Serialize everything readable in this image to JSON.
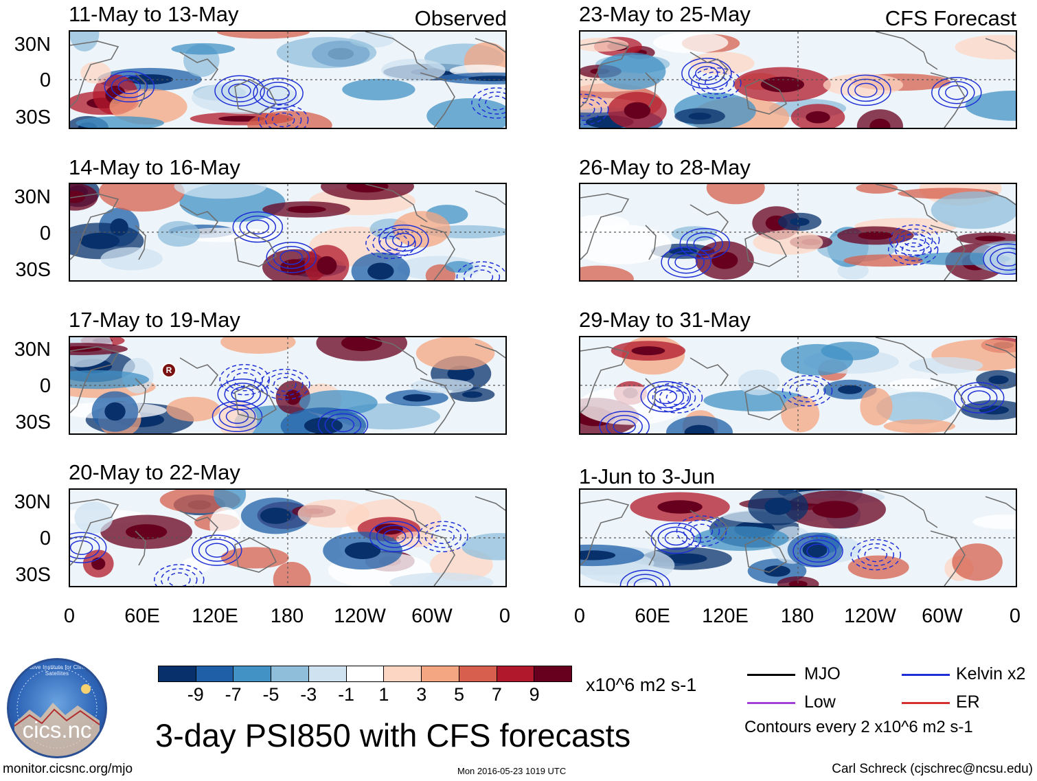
{
  "panels": {
    "left": [
      {
        "date": "11-May to 13-May",
        "tag": "Observed"
      },
      {
        "date": "14-May to 16-May",
        "tag": ""
      },
      {
        "date": "17-May to 19-May",
        "tag": "",
        "marker": "R"
      },
      {
        "date": "20-May to 22-May",
        "tag": ""
      }
    ],
    "right": [
      {
        "date": "23-May to 25-May",
        "tag": "CFS Forecast"
      },
      {
        "date": "26-May to 28-May",
        "tag": ""
      },
      {
        "date": "29-May to 31-May",
        "tag": ""
      },
      {
        "date": "1-Jun to 3-Jun",
        "tag": ""
      }
    ]
  },
  "lat_labels": [
    "30N",
    "0",
    "30S"
  ],
  "lon_labels": [
    "0",
    "60E",
    "120E",
    "180",
    "120W",
    "60W",
    "0"
  ],
  "colorbar": {
    "colors": [
      "#08306b",
      "#1f5fa8",
      "#4292c6",
      "#8fbedb",
      "#cfe2f0",
      "#ffffff",
      "#fdd5c3",
      "#f4a582",
      "#d6604d",
      "#b2182b",
      "#67001f"
    ],
    "ticks": [
      "-9",
      "-7",
      "-5",
      "-3",
      "-1",
      "1",
      "3",
      "5",
      "7",
      "9"
    ],
    "units": "x10^6 m2 s-1"
  },
  "legend": {
    "items": [
      {
        "label": "MJO",
        "color": "#000000"
      },
      {
        "label": "Kelvin x2",
        "color": "#1f2fd6"
      },
      {
        "label": "Low",
        "color": "#a23fd6"
      },
      {
        "label": "ER",
        "color": "#d62f2f"
      }
    ],
    "note": "Contours every 2 x10^6 m2 s-1"
  },
  "main_title": "3-day PSI850 with CFS forecasts",
  "footer": {
    "left": "monitor.cicsnc.org/mjo",
    "center": "Mon 2016-05-23 1019 UTC",
    "right": "Carl Schreck (cjschrec@ncsu.edu)"
  },
  "logo": {
    "text": "cics.nc",
    "ring": "Cooperative Institute for Climate and Satellites"
  }
}
